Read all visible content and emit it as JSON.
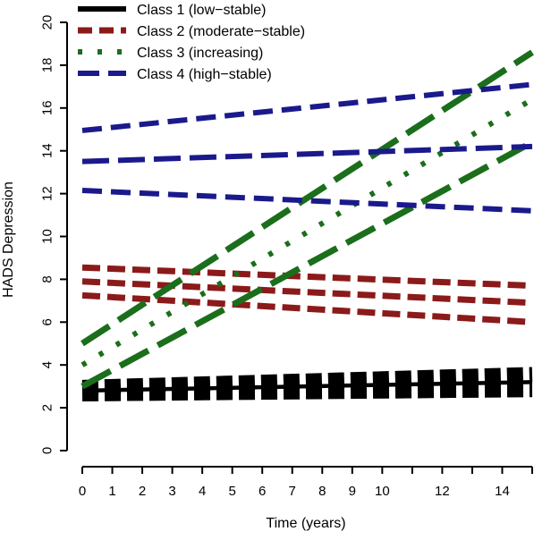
{
  "chart_data": {
    "type": "line",
    "xlabel": "Time (years)",
    "ylabel": "HADS Depression",
    "xlim": [
      0,
      15
    ],
    "ylim": [
      0,
      20
    ],
    "x_ticks": [
      0,
      1,
      2,
      3,
      4,
      5,
      6,
      7,
      8,
      9,
      10,
      12,
      14
    ],
    "y_ticks": [
      0,
      2,
      4,
      6,
      8,
      10,
      12,
      14,
      16,
      18,
      20
    ],
    "grid": false,
    "legend_position": "top-left",
    "legend": [
      {
        "label": "Class 1 (low−stable)",
        "color": "#000000",
        "style": "solid"
      },
      {
        "label": "Class 2 (moderate−stable)",
        "color": "#8b1a1a",
        "style": "dashed"
      },
      {
        "label": "Class 3 (increasing)",
        "color": "#1b6e1b",
        "style": "dotted"
      },
      {
        "label": "Class 4 (high−stable)",
        "color": "#1a1a8c",
        "style": "longdash"
      }
    ],
    "series": [
      {
        "cls": 0,
        "role": "mean",
        "x": [
          0,
          15
        ],
        "y": [
          2.8,
          3.2
        ]
      },
      {
        "cls": 0,
        "role": "bound",
        "x": [
          0,
          15
        ],
        "y": [
          2.95,
          3.55
        ]
      },
      {
        "cls": 0,
        "role": "bound",
        "x": [
          0,
          15
        ],
        "y": [
          2.65,
          2.85
        ]
      },
      {
        "cls": 1,
        "role": "mean",
        "x": [
          0,
          15
        ],
        "y": [
          7.9,
          6.9
        ]
      },
      {
        "cls": 1,
        "role": "bound",
        "x": [
          0,
          15
        ],
        "y": [
          8.55,
          7.7
        ]
      },
      {
        "cls": 1,
        "role": "bound",
        "x": [
          0,
          15
        ],
        "y": [
          7.25,
          6.0
        ]
      },
      {
        "cls": 2,
        "role": "mean",
        "x": [
          0,
          15
        ],
        "y": [
          4.0,
          16.4
        ]
      },
      {
        "cls": 2,
        "role": "bound",
        "x": [
          0,
          15
        ],
        "y": [
          5.0,
          18.6
        ]
      },
      {
        "cls": 2,
        "role": "bound",
        "x": [
          0,
          15
        ],
        "y": [
          3.0,
          14.4
        ]
      },
      {
        "cls": 3,
        "role": "mean",
        "x": [
          0,
          15
        ],
        "y": [
          13.5,
          14.2
        ]
      },
      {
        "cls": 3,
        "role": "bound",
        "x": [
          0,
          15
        ],
        "y": [
          14.95,
          17.1
        ]
      },
      {
        "cls": 3,
        "role": "bound",
        "x": [
          0,
          15
        ],
        "y": [
          12.15,
          11.2
        ]
      }
    ]
  }
}
